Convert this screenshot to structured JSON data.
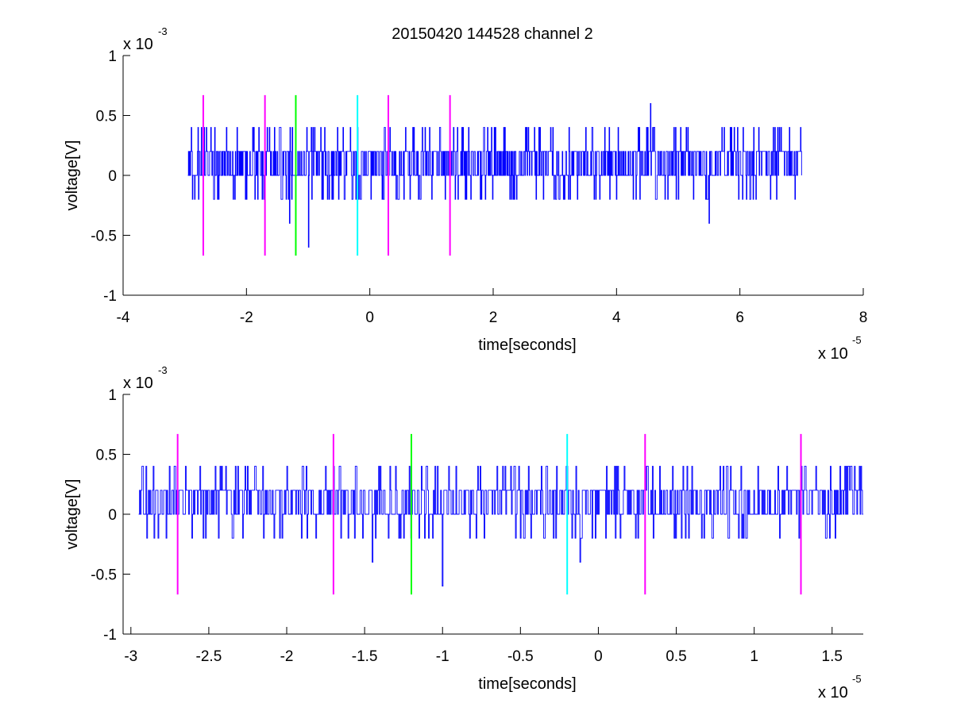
{
  "title": "20150420 144528 channel 2",
  "colors": {
    "signal": "#0000ff",
    "magenta": "#ff00ff",
    "green": "#00ff00",
    "cyan": "#00ffff",
    "axes": "#000000",
    "background": "#ffffff"
  },
  "chart_data": [
    {
      "type": "line",
      "title": "20150420 144528 channel 2",
      "xlabel": "time[seconds]",
      "ylabel": "voltage[V]",
      "x_scale_label": "x 10",
      "x_scale_exponent": "-5",
      "y_scale_label": "x 10",
      "y_scale_exponent": "-3",
      "xlim": [
        -4,
        8
      ],
      "ylim": [
        -1,
        1
      ],
      "x_ticks": [
        "-4",
        "-2",
        "0",
        "2",
        "4",
        "6",
        "8"
      ],
      "x_tick_values": [
        -4,
        -2,
        0,
        2,
        4,
        6,
        8
      ],
      "y_ticks": [
        "-1",
        "-0.5",
        "0",
        "0.5",
        "1"
      ],
      "y_tick_values": [
        -1,
        -0.5,
        0,
        0.5,
        1
      ],
      "grid": false,
      "signal": {
        "color": "#0000ff",
        "x_range": [
          -2.95,
          7.0
        ],
        "level_step": 0.2,
        "typical_levels": [
          0,
          0.2
        ],
        "spikes": [
          {
            "x": -2.9,
            "y": 0.4
          },
          {
            "x": -2.88,
            "y": -0.2
          },
          {
            "x": -2.84,
            "y": -0.2
          },
          {
            "x": -2.65,
            "y": 0.4
          },
          {
            "x": -1.9,
            "y": 0.4
          },
          {
            "x": -1.55,
            "y": 0.4
          },
          {
            "x": -1.3,
            "y": -0.4
          },
          {
            "x": -1.0,
            "y": -0.6
          },
          {
            "x": -0.8,
            "y": 0.4
          },
          {
            "x": -0.2,
            "y": 0.4
          },
          {
            "x": -0.15,
            "y": -0.2
          },
          {
            "x": 1.0,
            "y": -0.2
          },
          {
            "x": 3.5,
            "y": 0.4
          },
          {
            "x": 4.55,
            "y": 0.6
          },
          {
            "x": 4.5,
            "y": 0.4
          },
          {
            "x": 5.5,
            "y": -0.4
          },
          {
            "x": 6.3,
            "y": 0.4
          },
          {
            "x": 6.8,
            "y": 0.4
          }
        ]
      },
      "markers": [
        {
          "x": -2.7,
          "color": "#ff00ff",
          "y_range": [
            -0.67,
            0.67
          ]
        },
        {
          "x": -1.7,
          "color": "#ff00ff",
          "y_range": [
            -0.67,
            0.67
          ]
        },
        {
          "x": -1.2,
          "color": "#00ff00",
          "y_range": [
            -0.67,
            0.67
          ]
        },
        {
          "x": -0.2,
          "color": "#00ffff",
          "y_range": [
            -0.67,
            0.67
          ]
        },
        {
          "x": 0.3,
          "color": "#ff00ff",
          "y_range": [
            -0.67,
            0.67
          ]
        },
        {
          "x": 1.3,
          "color": "#ff00ff",
          "y_range": [
            -0.67,
            0.67
          ]
        }
      ]
    },
    {
      "type": "line",
      "title": "",
      "xlabel": "time[seconds]",
      "ylabel": "voltage[V]",
      "x_scale_label": "x 10",
      "x_scale_exponent": "-5",
      "y_scale_label": "x 10",
      "y_scale_exponent": "-3",
      "xlim": [
        -3.05,
        1.7
      ],
      "ylim": [
        -1,
        1
      ],
      "x_ticks": [
        "-3",
        "-2.5",
        "-2",
        "-1.5",
        "-1",
        "-0.5",
        "0",
        "0.5",
        "1",
        "1.5"
      ],
      "x_tick_values": [
        -3,
        -2.5,
        -2,
        -1.5,
        -1,
        -0.5,
        0,
        0.5,
        1,
        1.5
      ],
      "y_ticks": [
        "-1",
        "-0.5",
        "0",
        "0.5",
        "1"
      ],
      "y_tick_values": [
        -1,
        -0.5,
        0,
        0.5,
        1
      ],
      "grid": false,
      "signal": {
        "color": "#0000ff",
        "x_range": [
          -2.95,
          1.7
        ],
        "level_step": 0.2,
        "typical_levels": [
          0,
          0.2
        ],
        "spikes": [
          {
            "x": -2.93,
            "y": 0.4
          },
          {
            "x": -2.9,
            "y": -0.2
          },
          {
            "x": -2.85,
            "y": -0.2
          },
          {
            "x": -2.72,
            "y": 0.4
          },
          {
            "x": -2.65,
            "y": 0.4
          },
          {
            "x": -2.2,
            "y": 0.4
          },
          {
            "x": -2.0,
            "y": 0.4
          },
          {
            "x": -1.7,
            "y": 0.4
          },
          {
            "x": -1.45,
            "y": -0.4
          },
          {
            "x": -1.25,
            "y": -0.2
          },
          {
            "x": -1.1,
            "y": 0.4
          },
          {
            "x": -1.0,
            "y": -0.6
          },
          {
            "x": -0.65,
            "y": 0.4
          },
          {
            "x": -0.35,
            "y": -0.2
          },
          {
            "x": -0.2,
            "y": 0.4
          },
          {
            "x": -0.12,
            "y": -0.4
          },
          {
            "x": 0.05,
            "y": 0.4
          },
          {
            "x": 0.3,
            "y": 0.4
          },
          {
            "x": 0.9,
            "y": -0.2
          },
          {
            "x": 1.3,
            "y": 0.4
          },
          {
            "x": 1.6,
            "y": 0.4
          }
        ]
      },
      "markers": [
        {
          "x": -2.7,
          "color": "#ff00ff",
          "y_range": [
            -0.67,
            0.67
          ]
        },
        {
          "x": -1.7,
          "color": "#ff00ff",
          "y_range": [
            -0.67,
            0.67
          ]
        },
        {
          "x": -1.2,
          "color": "#00ff00",
          "y_range": [
            -0.67,
            0.67
          ]
        },
        {
          "x": -0.2,
          "color": "#00ffff",
          "y_range": [
            -0.67,
            0.67
          ]
        },
        {
          "x": 0.3,
          "color": "#ff00ff",
          "y_range": [
            -0.67,
            0.67
          ]
        },
        {
          "x": 1.3,
          "color": "#ff00ff",
          "y_range": [
            -0.67,
            0.67
          ]
        }
      ]
    }
  ]
}
